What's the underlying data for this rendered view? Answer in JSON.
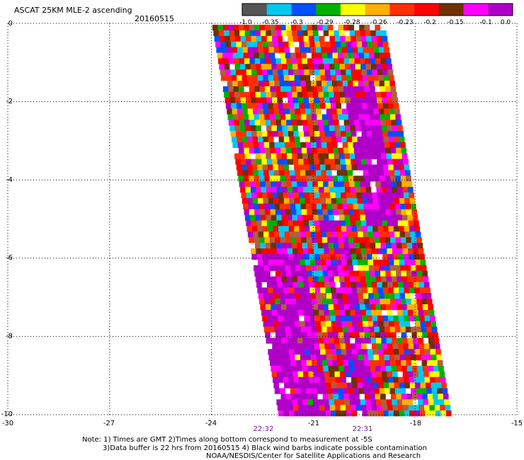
{
  "header": {
    "title": "ASCAT 25KM MLE-2 ascending",
    "date": "20160515"
  },
  "colorbar": {
    "labels": [
      "-1.0",
      "-0.35",
      "-0.3",
      "-0.29",
      "-0.28",
      "-0.26",
      "-0.23",
      "-0.2",
      "-0.15",
      "-0.1",
      "0.0"
    ],
    "colors": [
      "#555555",
      "#00c8f0",
      "#0050ff",
      "#00b000",
      "#ffff00",
      "#ffb000",
      "#ff3000",
      "#ff0000",
      "#703000",
      "#ff00ff",
      "#b000c8"
    ]
  },
  "axes": {
    "x_ticks": [
      "-30",
      "-27",
      "-24",
      "-21",
      "-18",
      "-15"
    ],
    "y_ticks": [
      "0",
      "-2",
      "-4",
      "-6",
      "-8",
      "-10"
    ],
    "x_range": [
      -30,
      -15
    ],
    "y_range": [
      -10,
      0
    ]
  },
  "times": [
    {
      "label": "22:32",
      "lon": -22.9
    },
    {
      "label": "22:31",
      "lon": -19.9
    }
  ],
  "notes": {
    "line1": "Note: 1) Times are GMT 2)Times along bottom correspond to measurement at -5S",
    "line2": "3)Data buffer is 22 hrs from 20160515 4) Black wind barbs indicate possible contamination",
    "line3": "NOAA/NESDIS/Center for Satellite Applications and Research"
  }
}
